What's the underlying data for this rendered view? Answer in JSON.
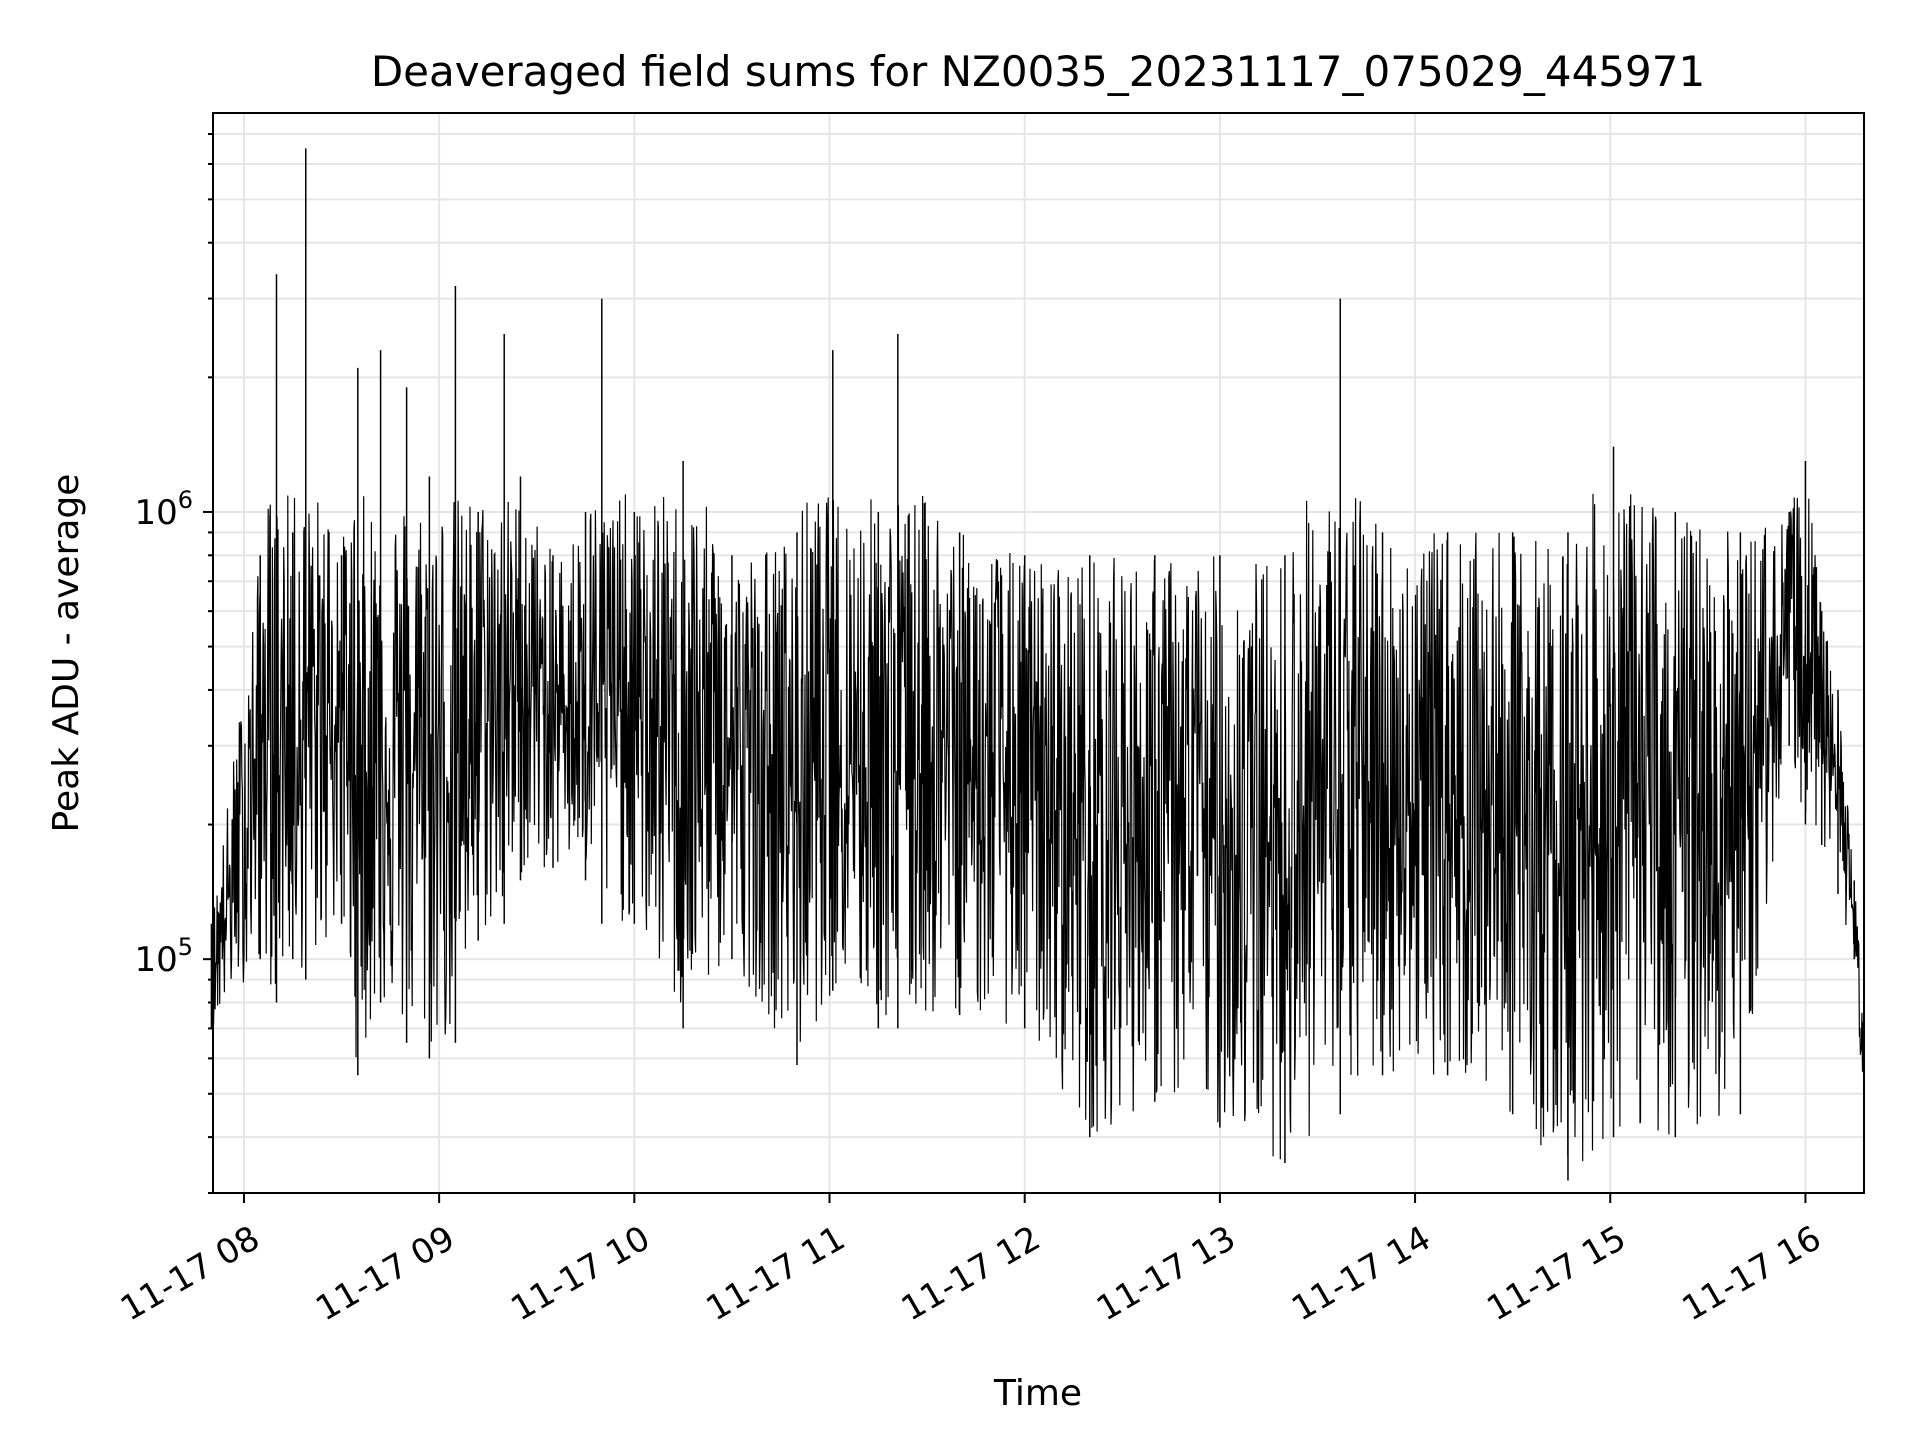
{
  "chart_data": {
    "type": "line",
    "title": "Deaveraged field sums for NZ0035_20231117_075029_445971",
    "xlabel": "Time",
    "ylabel": "Peak ADU - average",
    "yscale": "log",
    "ylim": [
      30000,
      7800000
    ],
    "xlim": [
      "2023-11-17 07:50:29",
      "2023-11-17 16:18:00"
    ],
    "grid": true,
    "line_color": "#000000",
    "grid_color": "#e6e6e6",
    "x_tick_labels": [
      "11-17 08",
      "11-17 09",
      "11-17 10",
      "11-17 11",
      "11-17 12",
      "11-17 13",
      "11-17 14",
      "11-17 15",
      "11-17 16"
    ],
    "y_tick_labels": [
      {
        "base": "10",
        "exp": "5",
        "value": 100000
      },
      {
        "base": "10",
        "exp": "6",
        "value": 1000000
      }
    ],
    "series": [
      {
        "x": [
          "2023-11-17 07:50",
          "2023-11-17 08:05",
          "2023-11-17 08:10",
          "2023-11-17 08:15",
          "2023-11-17 08:19",
          "2023-11-17 08:30",
          "2023-11-17 08:35",
          "2023-11-17 08:42",
          "2023-11-17 08:50",
          "2023-11-17 08:57",
          "2023-11-17 09:05",
          "2023-11-17 09:12",
          "2023-11-17 09:20",
          "2023-11-17 09:25",
          "2023-11-17 09:35",
          "2023-11-17 09:45",
          "2023-11-17 09:50",
          "2023-11-17 10:00",
          "2023-11-17 10:15",
          "2023-11-17 10:30",
          "2023-11-17 10:50",
          "2023-11-17 11:01",
          "2023-11-17 11:15",
          "2023-11-17 11:21",
          "2023-11-17 11:40",
          "2023-11-17 12:00",
          "2023-11-17 12:20",
          "2023-11-17 12:40",
          "2023-11-17 13:00",
          "2023-11-17 13:20",
          "2023-11-17 13:37",
          "2023-11-17 13:50",
          "2023-11-17 14:10",
          "2023-11-17 14:30",
          "2023-11-17 14:47",
          "2023-11-17 15:01",
          "2023-11-17 15:20",
          "2023-11-17 15:40",
          "2023-11-17 15:55",
          "2023-11-17 16:00",
          "2023-11-17 16:05",
          "2023-11-17 16:10",
          "2023-11-17 16:15",
          "2023-11-17 16:18"
        ],
        "y_peak": [
          120000,
          800000,
          3400000,
          900000,
          6500000,
          800000,
          2100000,
          2300000,
          1900000,
          1200000,
          3200000,
          1000000,
          2500000,
          1200000,
          800000,
          1000000,
          3000000,
          1000000,
          1300000,
          800000,
          900000,
          2300000,
          1000000,
          2500000,
          900000,
          800000,
          800000,
          800000,
          800000,
          800000,
          3000000,
          900000,
          900000,
          900000,
          900000,
          1400000,
          1000000,
          900000,
          1000000,
          1300000,
          600000,
          400000,
          150000,
          80000
        ],
        "y_trough": [
          70000,
          100000,
          80000,
          100000,
          90000,
          120000,
          55000,
          80000,
          65000,
          60000,
          65000,
          110000,
          120000,
          150000,
          160000,
          150000,
          120000,
          120000,
          70000,
          100000,
          58000,
          85000,
          70000,
          70000,
          75000,
          70000,
          40000,
          48000,
          42000,
          35000,
          45000,
          55000,
          55000,
          45000,
          32000,
          40000,
          40000,
          45000,
          300000,
          200000,
          180000,
          140000,
          100000,
          45000
        ]
      }
    ]
  }
}
